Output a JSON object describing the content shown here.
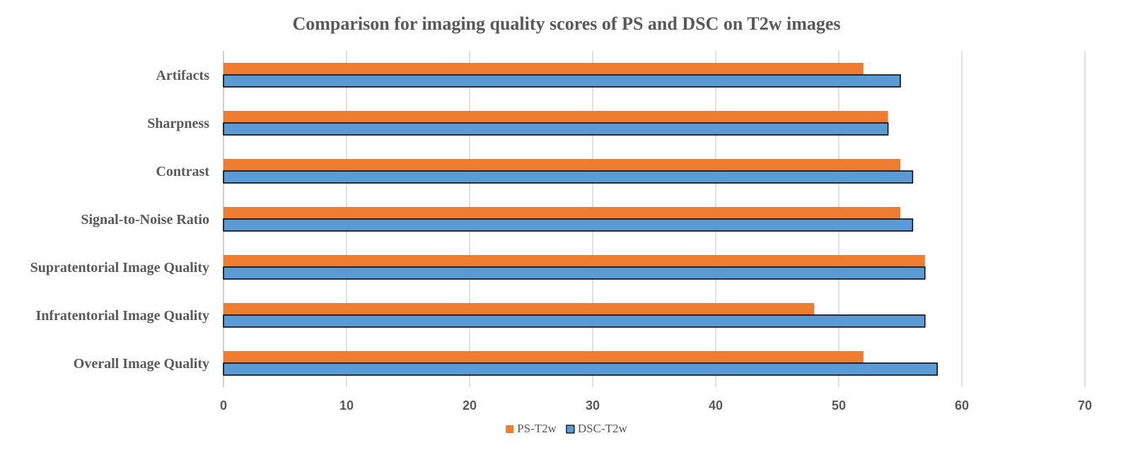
{
  "chart_data": {
    "type": "bar",
    "orientation": "horizontal",
    "title": "Comparison for imaging quality scores of  PS and DSC on T2w images",
    "xlabel": "",
    "ylabel": "",
    "xlim": [
      0,
      70
    ],
    "x_ticks": [
      0,
      10,
      20,
      30,
      40,
      50,
      60,
      70
    ],
    "grid": true,
    "legend_position": "bottom",
    "categories": [
      "Artifacts",
      "Sharpness",
      "Contrast",
      "Signal-to-Noise Ratio",
      "Supratentorial Image Quality",
      "Infratentorial Image Quality",
      "Overall Image Quality"
    ],
    "series": [
      {
        "name": "PS-T2w",
        "color": "#ed7d31",
        "outlined": false,
        "values": [
          52,
          54,
          55,
          55,
          57,
          48,
          52
        ]
      },
      {
        "name": "DSC-T2w",
        "color": "#5b9bd5",
        "outlined": true,
        "values": [
          55,
          54,
          56,
          56,
          57,
          57,
          58
        ]
      }
    ]
  }
}
